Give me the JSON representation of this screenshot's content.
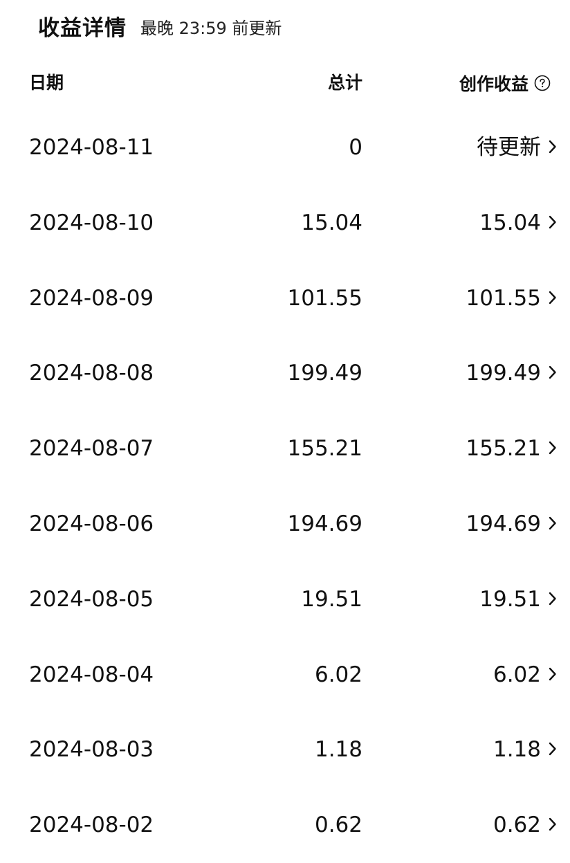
{
  "header": {
    "title": "收益详情",
    "subtitle": "最晚 23:59 前更新"
  },
  "columns": {
    "date": "日期",
    "total": "总计",
    "earnings": "创作收益",
    "earnings_help_icon": "question-circle-icon"
  },
  "rows": [
    {
      "date": "2024-08-11",
      "total": "0",
      "earnings": "待更新"
    },
    {
      "date": "2024-08-10",
      "total": "15.04",
      "earnings": "15.04"
    },
    {
      "date": "2024-08-09",
      "total": "101.55",
      "earnings": "101.55"
    },
    {
      "date": "2024-08-08",
      "total": "199.49",
      "earnings": "199.49"
    },
    {
      "date": "2024-08-07",
      "total": "155.21",
      "earnings": "155.21"
    },
    {
      "date": "2024-08-06",
      "total": "194.69",
      "earnings": "194.69"
    },
    {
      "date": "2024-08-05",
      "total": "19.51",
      "earnings": "19.51"
    },
    {
      "date": "2024-08-04",
      "total": "6.02",
      "earnings": "6.02"
    },
    {
      "date": "2024-08-03",
      "total": "1.18",
      "earnings": "1.18"
    },
    {
      "date": "2024-08-02",
      "total": "0.62",
      "earnings": "0.62"
    }
  ],
  "row_chevron_icon": "chevron-right-icon",
  "colors": {
    "text": "#111111",
    "background": "#ffffff"
  }
}
